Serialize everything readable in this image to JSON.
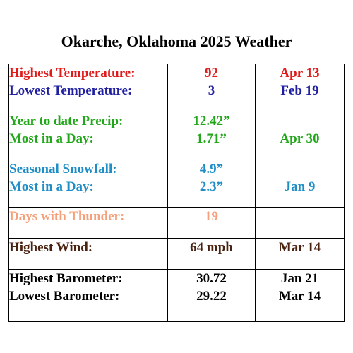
{
  "title": "Okarche, Oklahoma 2025 Weather",
  "colors": {
    "red": "#e01b1b",
    "blue": "#1f1fa0",
    "green": "#22a61a",
    "cyan": "#1f8ec6",
    "peach": "#f5a07a",
    "brown": "#4a2210",
    "black": "#000000"
  },
  "rows": [
    {
      "lines": [
        {
          "label": "Highest Temperature:",
          "value": "92",
          "date": "Apr 13",
          "color": "#e01b1b"
        },
        {
          "label": "Lowest Temperature:",
          "value": "3",
          "date": "Feb 19",
          "color": "#1f1fa0"
        }
      ]
    },
    {
      "lines": [
        {
          "label": "Year to date Precip:",
          "value": "12.42”",
          "date": "",
          "color": "#22a61a"
        },
        {
          "label": "Most in a Day:",
          "value": "1.71”",
          "date": "Apr 30",
          "color": "#22a61a"
        }
      ]
    },
    {
      "lines": [
        {
          "label": "Seasonal Snowfall:",
          "value": "4.9”",
          "date": "",
          "color": "#1f8ec6"
        },
        {
          "label": "Most in a Day:",
          "value": "2.3”",
          "date": "Jan 9",
          "color": "#1f8ec6"
        }
      ]
    },
    {
      "lines": [
        {
          "label": "Days with Thunder:",
          "value": "19",
          "date": "",
          "color": "#f5a07a"
        }
      ]
    },
    {
      "lines": [
        {
          "label": "Highest Wind:",
          "value": "64 mph",
          "date": "Mar 14",
          "color": "#4a2210"
        }
      ]
    },
    {
      "lines": [
        {
          "label": "Highest Barometer:",
          "value": "30.72",
          "date": "Jan 21",
          "color": "#000000"
        },
        {
          "label": "Lowest Barometer:",
          "value": "29.22",
          "date": "Mar 14",
          "color": "#000000"
        }
      ]
    }
  ]
}
